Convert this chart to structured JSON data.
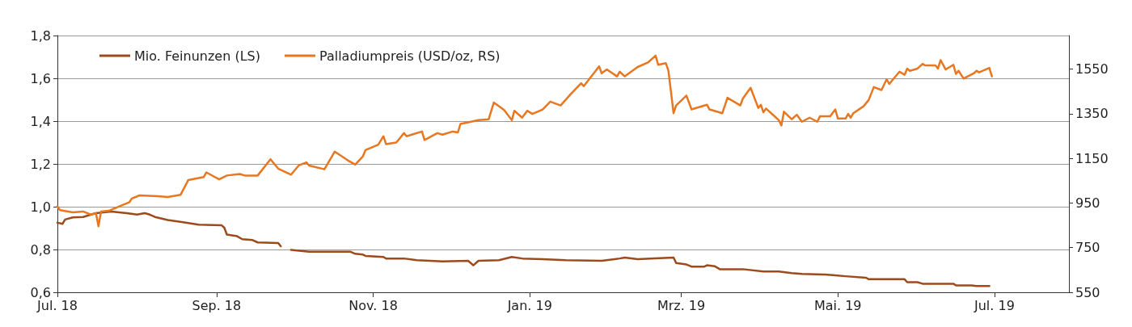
{
  "chart_data": {
    "type": "line",
    "xlim": [
      "2018-07-01",
      "2019-07-30"
    ],
    "xticks": [
      {
        "value": "2018-07-01",
        "label": "Jul. 18"
      },
      {
        "value": "2018-09-01",
        "label": "Sep. 18"
      },
      {
        "value": "2018-11-01",
        "label": "Nov. 18"
      },
      {
        "value": "2019-01-01",
        "label": "Jan. 19"
      },
      {
        "value": "2019-03-01",
        "label": "Mrz. 19"
      },
      {
        "value": "2019-05-01",
        "label": "Mai. 19"
      },
      {
        "value": "2019-07-01",
        "label": "Jul. 19"
      }
    ],
    "ylim": [
      0.6,
      1.8
    ],
    "yticks": [
      {
        "value": 0.6,
        "label": "0,6"
      },
      {
        "value": 0.8,
        "label": "0,8"
      },
      {
        "value": 1.0,
        "label": "1,0"
      },
      {
        "value": 1.2,
        "label": "1,2"
      },
      {
        "value": 1.4,
        "label": "1,4"
      },
      {
        "value": 1.6,
        "label": "1,6"
      },
      {
        "value": 1.8,
        "label": "1,8"
      }
    ],
    "y2lim": [
      550,
      1700
    ],
    "y2ticks": [
      550,
      750,
      950,
      1150,
      1350,
      1550
    ],
    "grid": "y",
    "legend": "top left",
    "marker": "none",
    "line_style": "solid",
    "series": [
      {
        "name": "Mio. Feinunzen (LS)",
        "color": "#9e4b1c",
        "x": [
          "2018-07-01",
          "2018-07-03",
          "2018-07-04",
          "2018-07-07",
          "2018-07-11",
          "2018-07-16",
          "2018-07-22",
          "2018-07-28",
          "2018-08-01",
          "2018-08-04",
          "2018-08-06",
          "2018-08-08",
          "2018-08-13",
          "2018-08-19",
          "2018-08-25",
          "2018-09-03",
          "2018-09-04",
          "2018-09-05",
          "2018-09-09",
          "2018-09-11",
          "2018-09-15",
          "2018-09-17",
          "2018-09-25",
          "2018-09-26",
          "2018-09-28",
          "2018-09-30",
          "2018-10-07",
          "2018-10-23",
          "2018-10-25",
          "2018-10-28",
          "2018-10-29",
          "2018-11-05",
          "2018-11-06",
          "2018-11-13",
          "2018-11-18",
          "2018-11-28",
          "2018-12-08",
          "2018-12-10",
          "2018-12-12",
          "2018-12-20",
          "2018-12-25",
          "2018-12-29",
          "2019-01-06",
          "2019-01-15",
          "2019-01-29",
          "2019-02-05",
          "2019-02-07",
          "2019-02-12",
          "2019-02-17",
          "2019-02-26",
          "2019-02-27",
          "2019-03-03",
          "2019-03-05",
          "2019-03-10",
          "2019-03-11",
          "2019-03-14",
          "2019-03-16",
          "2019-03-25",
          "2019-04-02",
          "2019-04-08",
          "2019-04-13",
          "2019-04-17",
          "2019-04-26",
          "2019-04-30",
          "2019-05-04",
          "2019-05-12",
          "2019-05-13",
          "2019-05-27",
          "2019-05-28",
          "2019-06-01",
          "2019-06-03",
          "2019-06-15",
          "2019-06-16",
          "2019-06-22",
          "2019-06-24",
          "2019-06-29"
        ],
        "values": [
          0.925,
          0.92,
          0.94,
          0.95,
          0.952,
          0.97,
          0.977,
          0.97,
          0.963,
          0.97,
          0.963,
          0.952,
          0.938,
          0.927,
          0.916,
          0.913,
          0.902,
          0.87,
          0.862,
          0.848,
          0.844,
          0.833,
          0.83,
          0.815,
          null,
          0.798,
          0.79,
          0.79,
          0.78,
          0.776,
          0.77,
          0.765,
          0.758,
          0.758,
          0.75,
          0.744,
          0.747,
          0.726,
          0.747,
          0.75,
          0.765,
          0.758,
          0.755,
          0.75,
          0.747,
          0.758,
          0.762,
          0.755,
          0.758,
          0.762,
          0.737,
          0.73,
          0.72,
          0.72,
          0.726,
          0.722,
          0.708,
          0.708,
          0.697,
          0.697,
          0.69,
          0.686,
          0.683,
          0.679,
          0.675,
          0.668,
          0.661,
          0.661,
          0.647,
          0.647,
          0.64,
          0.64,
          0.632,
          0.632,
          0.629,
          0.629
        ]
      },
      {
        "name": "Palladiumpreis (USD/oz, RS)",
        "color": "#e87722",
        "axis": "y2",
        "x": [
          "2018-07-01",
          "2018-07-02",
          "2018-07-07",
          "2018-07-11",
          "2018-07-14",
          "2018-07-16",
          "2018-07-17",
          "2018-07-18",
          "2018-07-21",
          "2018-07-24",
          "2018-07-26",
          "2018-07-29",
          "2018-07-30",
          "2018-08-02",
          "2018-08-09",
          "2018-08-13",
          "2018-08-18",
          "2018-08-21",
          "2018-08-27",
          "2018-08-28",
          "2018-09-02",
          "2018-09-05",
          "2018-09-10",
          "2018-09-12",
          "2018-09-17",
          "2018-09-22",
          "2018-09-25",
          "2018-09-30",
          "2018-10-03",
          "2018-10-06",
          "2018-10-07",
          "2018-10-13",
          "2018-10-17",
          "2018-10-22",
          "2018-10-25",
          "2018-10-28",
          "2018-10-29",
          "2018-11-03",
          "2018-11-05",
          "2018-11-06",
          "2018-11-10",
          "2018-11-13",
          "2018-11-14",
          "2018-11-20",
          "2018-11-21",
          "2018-11-26",
          "2018-11-28",
          "2018-12-02",
          "2018-12-04",
          "2018-12-05",
          "2018-12-08",
          "2018-12-12",
          "2018-12-16",
          "2018-12-18",
          "2018-12-22",
          "2018-12-25",
          "2018-12-26",
          "2018-12-29",
          "2018-12-31",
          "2019-01-02",
          "2019-01-06",
          "2019-01-09",
          "2019-01-13",
          "2019-01-17",
          "2019-01-21",
          "2019-01-22",
          "2019-01-28",
          "2019-01-29",
          "2019-01-31",
          "2019-02-04",
          "2019-02-05",
          "2019-02-07",
          "2019-02-12",
          "2019-02-16",
          "2019-02-19",
          "2019-02-20",
          "2019-02-23",
          "2019-02-24",
          "2019-02-26",
          "2019-02-27",
          "2019-03-03",
          "2019-03-05",
          "2019-03-11",
          "2019-03-12",
          "2019-03-17",
          "2019-03-19",
          "2019-03-24",
          "2019-03-25",
          "2019-03-28",
          "2019-03-31",
          "2019-04-01",
          "2019-04-02",
          "2019-04-03",
          "2019-04-06",
          "2019-04-08",
          "2019-04-09",
          "2019-04-10",
          "2019-04-13",
          "2019-04-15",
          "2019-04-17",
          "2019-04-20",
          "2019-04-23",
          "2019-04-24",
          "2019-04-28",
          "2019-04-30",
          "2019-05-01",
          "2019-05-04",
          "2019-05-05",
          "2019-05-06",
          "2019-05-07",
          "2019-05-11",
          "2019-05-13",
          "2019-05-15",
          "2019-05-18",
          "2019-05-20",
          "2019-05-21",
          "2019-05-25",
          "2019-05-27",
          "2019-05-28",
          "2019-05-29",
          "2019-06-01",
          "2019-06-03",
          "2019-06-04",
          "2019-06-08",
          "2019-06-09",
          "2019-06-10",
          "2019-06-12",
          "2019-06-15",
          "2019-06-16",
          "2019-06-17",
          "2019-06-19",
          "2019-06-23",
          "2019-06-24",
          "2019-06-25",
          "2019-06-29",
          "2019-06-30"
        ],
        "values": [
          935,
          918,
          908,
          912,
          898,
          905,
          846,
          912,
          915,
          929,
          939,
          953,
          970,
          984,
          980,
          977,
          987,
          1053,
          1066,
          1087,
          1056,
          1073,
          1080,
          1073,
          1073,
          1146,
          1104,
          1077,
          1118,
          1132,
          1118,
          1101,
          1180,
          1142,
          1122,
          1159,
          1187,
          1211,
          1249,
          1214,
          1221,
          1263,
          1249,
          1270,
          1232,
          1263,
          1256,
          1270,
          1266,
          1304,
          1311,
          1321,
          1325,
          1400,
          1366,
          1321,
          1363,
          1332,
          1363,
          1349,
          1369,
          1404,
          1387,
          1438,
          1486,
          1473,
          1562,
          1531,
          1548,
          1517,
          1538,
          1517,
          1559,
          1579,
          1610,
          1569,
          1576,
          1542,
          1352,
          1387,
          1431,
          1369,
          1390,
          1369,
          1352,
          1421,
          1387,
          1418,
          1466,
          1376,
          1390,
          1356,
          1373,
          1342,
          1321,
          1297,
          1359,
          1325,
          1345,
          1314,
          1332,
          1314,
          1338,
          1338,
          1369,
          1328,
          1328,
          1349,
          1332,
          1352,
          1383,
          1411,
          1469,
          1456,
          1504,
          1483,
          1538,
          1524,
          1552,
          1542,
          1552,
          1573,
          1566,
          1566,
          1552,
          1590,
          1548,
          1569,
          1528,
          1542,
          1507,
          1531,
          1542,
          1535,
          1555,
          1517
        ]
      }
    ]
  }
}
